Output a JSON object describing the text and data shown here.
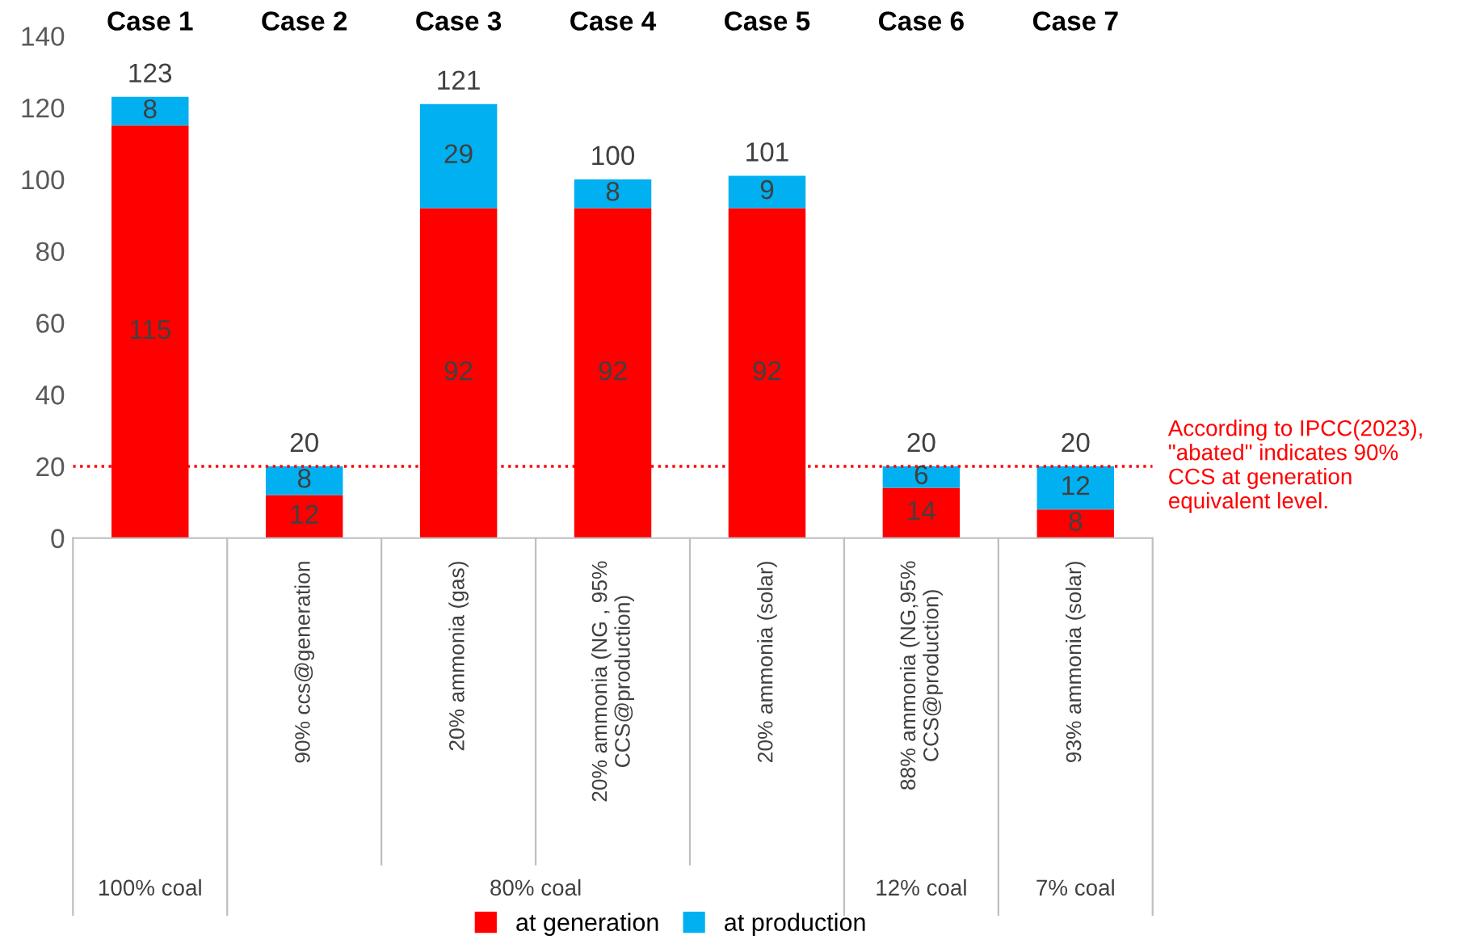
{
  "chart_data": {
    "type": "bar",
    "stacked": true,
    "categories": [
      null,
      "90% ccs@generation",
      "20% ammonia (gas)",
      "20% ammonia (NG , 95%\nCCS@production)",
      "20% ammonia (solar)",
      "88% ammonia (NG,95%\nCCS@production)",
      "93% ammonia (solar)"
    ],
    "series": [
      {
        "name": "at generation",
        "color": "#ff0000",
        "values": [
          115,
          12,
          92,
          92,
          92,
          14,
          8
        ]
      },
      {
        "name": "at production",
        "color": "#00b0f0",
        "values": [
          8,
          8,
          29,
          8,
          9,
          6,
          12
        ]
      }
    ],
    "data_labels": true,
    "totals": [
      "123",
      "20",
      "121",
      "100",
      "101",
      "20",
      "20"
    ],
    "ylim": [
      0,
      140
    ],
    "yticks": [
      0,
      20,
      40,
      60,
      80,
      100,
      120,
      140
    ],
    "grid": false,
    "legend": "bottom",
    "ref_lines": [
      {
        "axis": "y",
        "value": 20,
        "label": "According to IPCC(2023),\n\"abated\" indicates 90%\nCCS at generation\nequivalent level.",
        "color": "#ff0000",
        "line_style": "dotted"
      }
    ],
    "annotations": [
      "Case 1",
      "Case 2",
      "Case 3",
      "Case 4",
      "Case 5",
      "Case 6",
      "Case 7",
      "100% coal",
      "80% coal",
      "12% coal",
      "7% coal"
    ]
  }
}
